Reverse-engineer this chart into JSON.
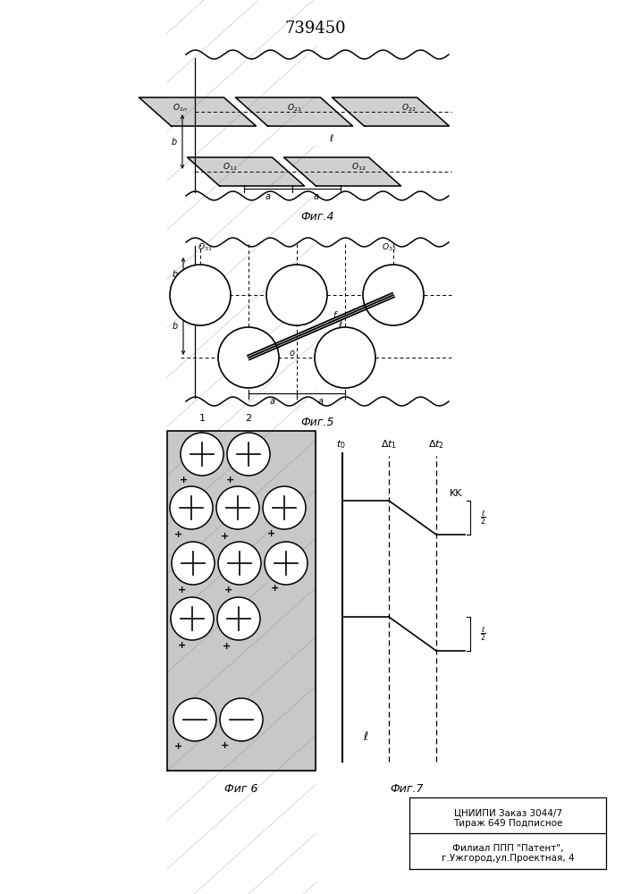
{
  "title": "739450",
  "fig4_label": "Фиг.4",
  "fig5_label": "Фиг.5",
  "fig6_label": "Фиг 6",
  "fig7_label": "Фиг.7",
  "bg_color": "#ffffff",
  "line_color": "#000000",
  "footer_line1": "ЦНИИПИ Заказ 3044/7",
  "footer_line2": "Тираж 649 Подписное",
  "footer_line3": "Филиал ППП \"Патент\",",
  "footer_line4": "г.Ужгород,ул.Проектная, 4"
}
